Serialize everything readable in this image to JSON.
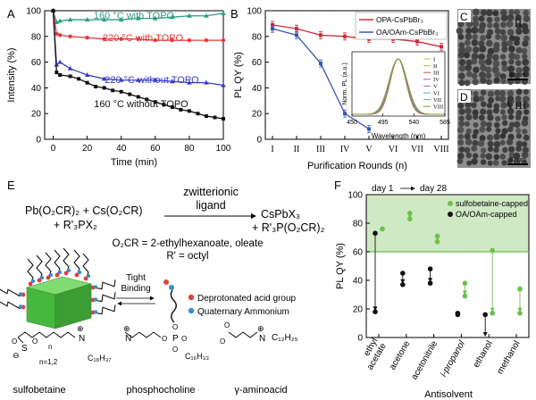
{
  "panels": {
    "A": {
      "letter": "A"
    },
    "B": {
      "letter": "B"
    },
    "C": {
      "letter": "C",
      "roman": "II",
      "scalebar": "30 nm"
    },
    "D": {
      "letter": "D",
      "roman": "VIII",
      "scalebar": "30 nm"
    },
    "E": {
      "letter": "E",
      "reactant1": "Pb(O₂CR)₂ + Cs(O₂CR)",
      "reactant2": "+ R'₃PX₂",
      "arrow_label1": "zwitterionic",
      "arrow_label2": "ligand",
      "product1": "CsPbX₃",
      "product2": "+ R'₃P(O₂CR)₂",
      "def1": "O₂CR = 2-ethylhexanoate, oleate",
      "def2": "R' = octyl",
      "binding": [
        "Tight",
        "Binding"
      ],
      "legend_acid": "Deprotonated acid group",
      "legend_ammonium": "Quaternary Ammonium",
      "ligand_names": [
        "sulfobetaine",
        "phosphocholine",
        "γ-aminoacid"
      ],
      "chem": {
        "sulfo_n": "n",
        "sulfo_n12": "n=1,2",
        "sulfo_chain": "C₁₈H₃₇",
        "phos_chain": "C₁₆H₃₃",
        "amino_chain": "C₁₂H₂₅",
        "N": "N",
        "P": "P",
        "S": "S",
        "O": "O",
        "plus": "⊕",
        "minus": "⊖"
      },
      "colors": {
        "acid": "#e0403a",
        "ammonium": "#3a8fd0",
        "cube": "#4fc14a"
      }
    },
    "F": {
      "letter": "F",
      "day_label_start": "day 1",
      "day_label_end": "day 28"
    }
  },
  "chart_data": [
    {
      "id": "A",
      "type": "line",
      "xlabel": "Time (min)",
      "ylabel": "Intensity (%)",
      "xlim": [
        -5,
        100
      ],
      "ylim": [
        0,
        100
      ],
      "xticks": [
        0,
        20,
        40,
        60,
        80,
        100
      ],
      "yticks": [
        0,
        20,
        40,
        60,
        80,
        100
      ],
      "series": [
        {
          "name": "160 °C with TOPO",
          "color": "#2a9d86",
          "marker": "triangle",
          "x": [
            0,
            2,
            4,
            10,
            20,
            30,
            40,
            50,
            60,
            70,
            80,
            90,
            100
          ],
          "y": [
            100,
            91,
            92,
            93,
            93,
            93,
            93,
            94,
            94,
            95,
            96,
            96,
            98
          ]
        },
        {
          "name": "220 °C with TOPO",
          "color": "#e23a3a",
          "marker": "circle",
          "x": [
            0,
            2,
            4,
            10,
            20,
            30,
            40,
            50,
            60,
            70,
            80,
            90,
            100
          ],
          "y": [
            100,
            82,
            81,
            80,
            79,
            78,
            78,
            78,
            77,
            77,
            77,
            77,
            77
          ]
        },
        {
          "name": "220 °C without TOPO",
          "color": "#3a3ec8",
          "marker": "triangle",
          "x": [
            0,
            2,
            4,
            10,
            20,
            30,
            40,
            50,
            60,
            70,
            80,
            90,
            100
          ],
          "y": [
            100,
            58,
            60,
            55,
            50,
            47,
            46,
            46,
            46,
            45,
            44,
            44,
            42
          ]
        },
        {
          "name": "160 °C without TOPO",
          "color": "#111111",
          "marker": "square",
          "x": [
            0,
            2,
            4,
            10,
            15,
            20,
            25,
            30,
            35,
            40,
            45,
            50,
            55,
            60,
            65,
            70,
            75,
            80,
            85,
            90,
            95,
            100
          ],
          "y": [
            100,
            52,
            50,
            49,
            47,
            44,
            41,
            40,
            38,
            37,
            35,
            33,
            31,
            29,
            27,
            25,
            23,
            22,
            20,
            18,
            17,
            16
          ]
        }
      ]
    },
    {
      "id": "B",
      "type": "line",
      "xlabel": "Purification Rounds (n)",
      "ylabel": "PL QY (%)",
      "categories": [
        "I",
        "II",
        "III",
        "IV",
        "V",
        "VI",
        "VII",
        "VIII"
      ],
      "ylim": [
        0,
        100
      ],
      "yticks": [
        0,
        20,
        40,
        60,
        80,
        100
      ],
      "legend": "top-right",
      "series": [
        {
          "name": "OPA-CsPbBr₃",
          "color": "#cc2a3a",
          "values": [
            89,
            86,
            81,
            80,
            78,
            78,
            76,
            72
          ]
        },
        {
          "name": "OA/OAm-CsPbBr₃",
          "color": "#3a55b5",
          "values": [
            86,
            81,
            59,
            20,
            8,
            null,
            null,
            null
          ]
        }
      ],
      "inset": {
        "type": "line",
        "xlabel": "Wavelength (nm)",
        "ylabel": "Norm. PL (a.u.)",
        "xticks": [
          450,
          495,
          540,
          585
        ],
        "xlim": [
          450,
          585
        ],
        "peak_center": 517,
        "legend": [
          "I",
          "II",
          "III",
          "IV",
          "V",
          "VI",
          "VII",
          "VIII"
        ],
        "colors": [
          "#b9c94a",
          "#e0a050",
          "#d05050",
          "#b060c0",
          "#7c7cd8",
          "#50b0c8",
          "#50b070",
          "#909030"
        ]
      }
    },
    {
      "id": "F",
      "type": "scatter",
      "xlabel": "Antisolvent",
      "ylabel": "PL QY (%)",
      "ylim": [
        0,
        100
      ],
      "yticks": [
        0,
        20,
        40,
        60,
        80,
        100
      ],
      "threshold": 60,
      "legend": "top-right",
      "categories": [
        "ethyl acetate",
        "acetone",
        "acetonitrile",
        "i-propanol",
        "ethanol",
        "methanol"
      ],
      "series": [
        {
          "name": "sulfobetaine-capped",
          "color": "#6cc04a",
          "day1": [
            76,
            87,
            71,
            38,
            61,
            34
          ],
          "day28": [
            76,
            83,
            67,
            29,
            17,
            17
          ]
        },
        {
          "name": "OA/OAm-capped",
          "color": "#111111",
          "day1": [
            73,
            45,
            48,
            17,
            16,
            null
          ],
          "day28": [
            18,
            37,
            38,
            16,
            0,
            null
          ]
        }
      ]
    }
  ]
}
